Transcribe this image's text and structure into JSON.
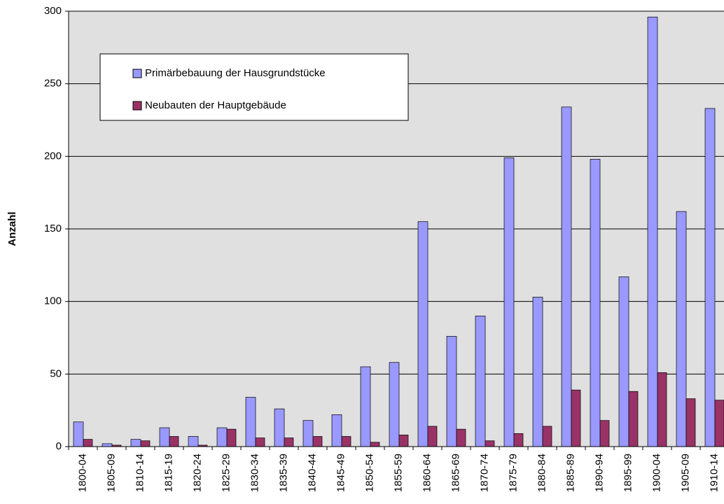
{
  "chart_data": {
    "type": "bar",
    "ylabel": "Anzahl",
    "categories": [
      "1800-04",
      "1805-09",
      "1810-14",
      "1815-19",
      "1820-24",
      "1825-29",
      "1830-34",
      "1835-39",
      "1840-44",
      "1845-49",
      "1850-54",
      "1855-59",
      "1860-64",
      "1865-69",
      "1870-74",
      "1875-79",
      "1880-84",
      "1885-89",
      "1890-94",
      "1895-99",
      "1900-04",
      "1905-09",
      "1910-14"
    ],
    "series": [
      {
        "name": "Primärbebauung der Hausgrundstücke",
        "color": "#9999ff",
        "values": [
          17,
          2,
          5,
          13,
          7,
          13,
          34,
          26,
          18,
          22,
          55,
          58,
          155,
          76,
          90,
          199,
          103,
          234,
          198,
          117,
          296,
          162,
          233
        ]
      },
      {
        "name": "Neubauten der Hauptgebäude",
        "color": "#993366",
        "values": [
          5,
          1,
          4,
          7,
          1,
          12,
          6,
          6,
          7,
          7,
          3,
          8,
          14,
          12,
          4,
          9,
          14,
          39,
          18,
          38,
          51,
          33,
          32
        ]
      }
    ],
    "ylim": [
      0,
      300
    ],
    "yticks": [
      0,
      50,
      100,
      150,
      200,
      250,
      300
    ],
    "grid": true,
    "background": "#e0e0e0"
  }
}
